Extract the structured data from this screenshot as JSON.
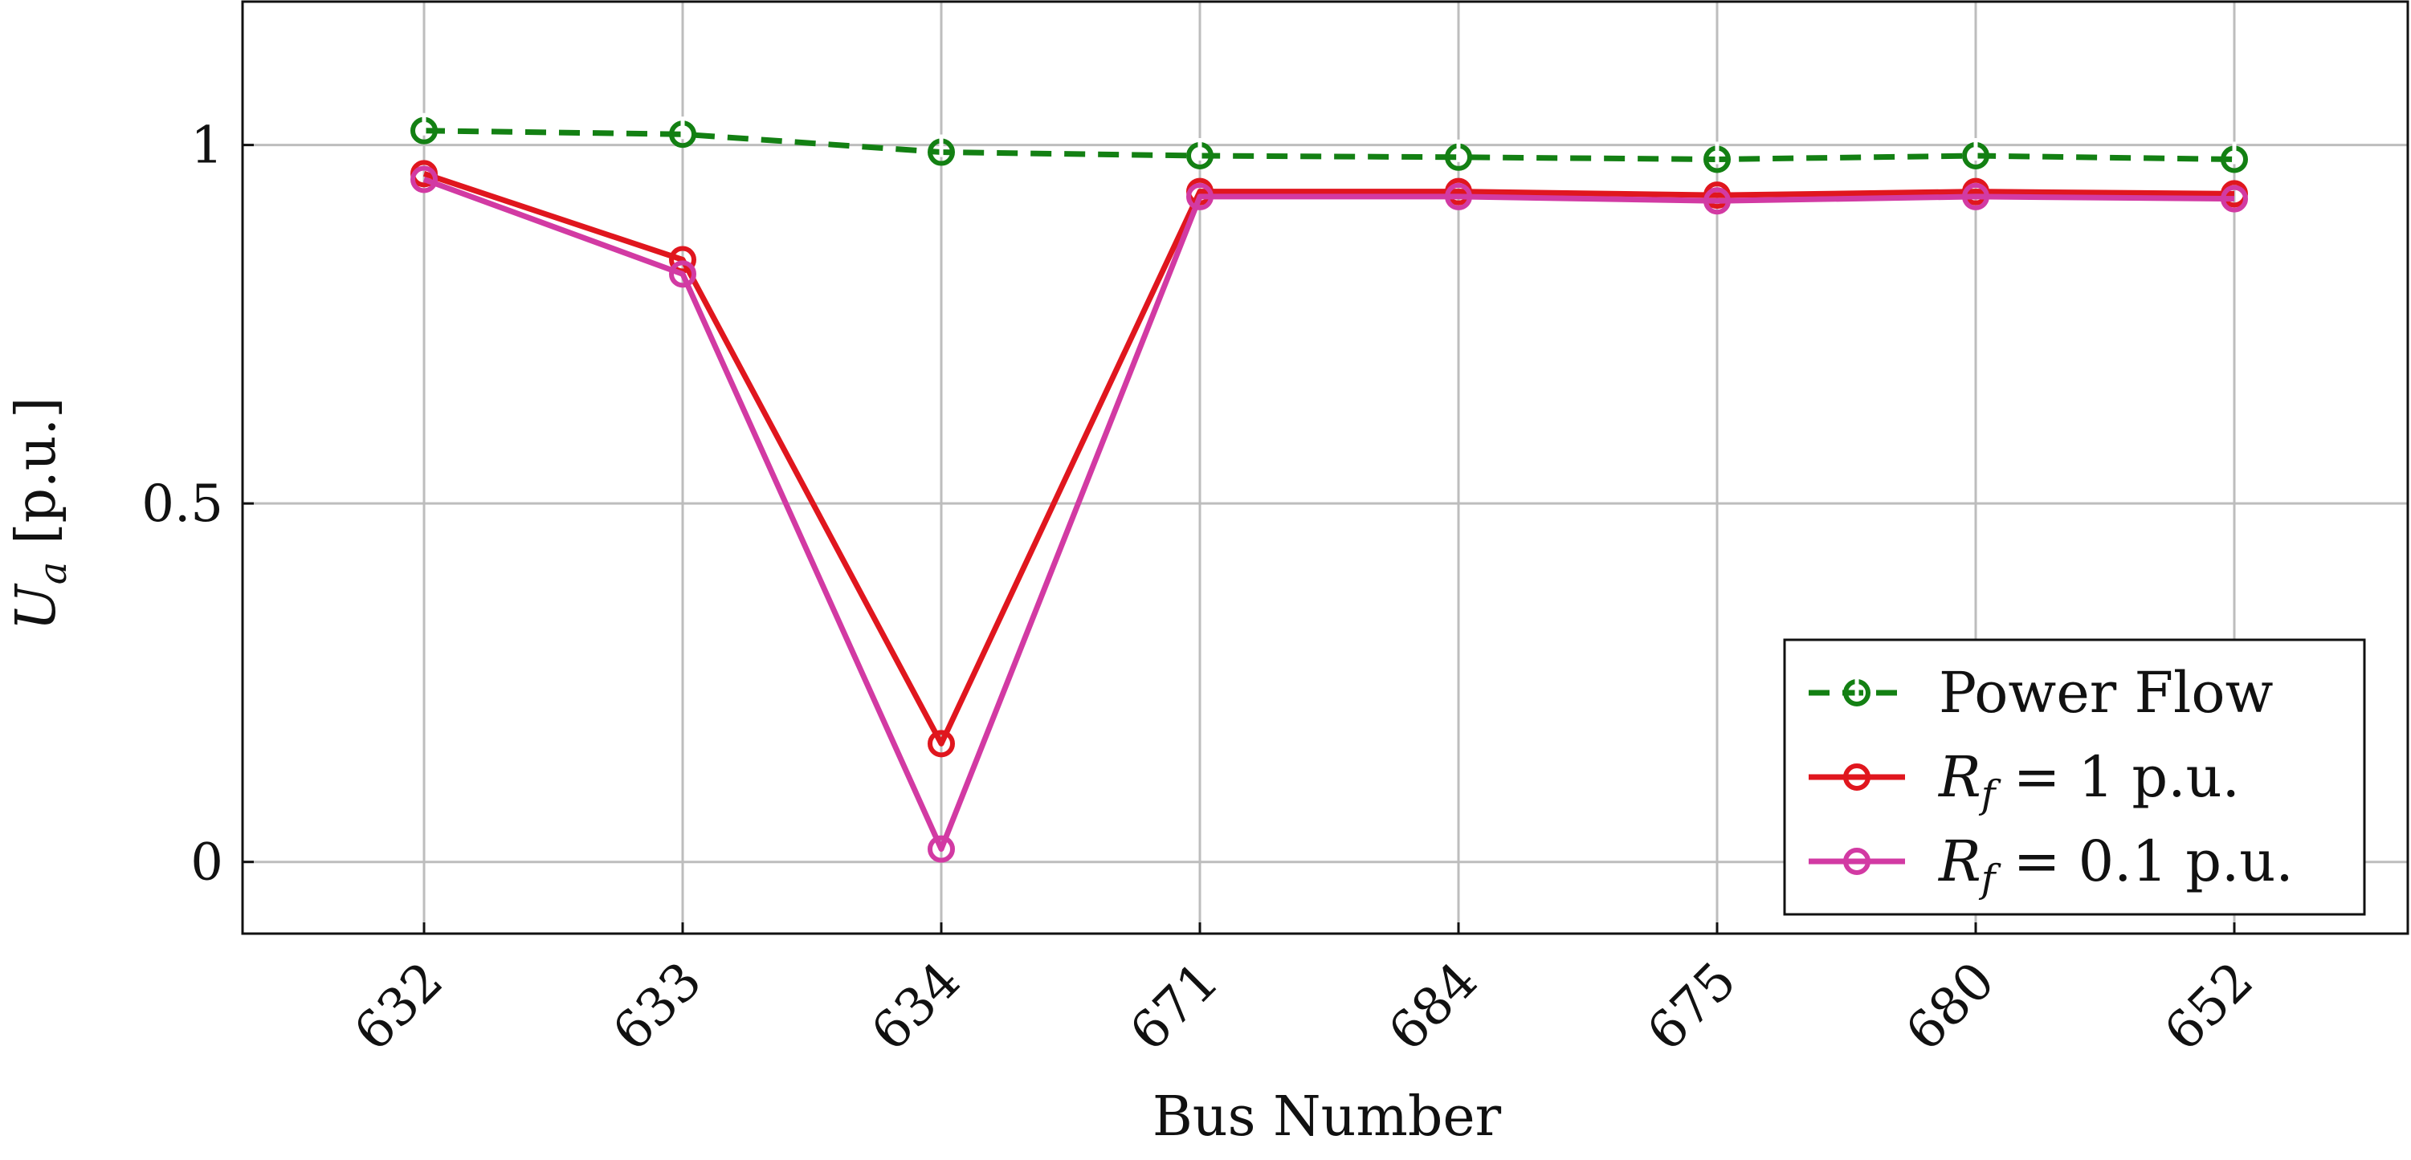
{
  "chart_data": {
    "type": "line",
    "title": "",
    "xlabel": "Bus Number",
    "ylabel": "U_a [p.u.]",
    "ylabel_main": "U",
    "ylabel_sub": "a",
    "ylabel_unit": " [p.u.]",
    "categories": [
      "632",
      "633",
      "634",
      "671",
      "684",
      "675",
      "680",
      "652"
    ],
    "yticks": [
      0,
      0.5,
      1
    ],
    "ytick_labels": [
      "0",
      "0.5",
      "1"
    ],
    "ylim": [
      -0.1,
      1.2
    ],
    "grid": true,
    "legend_position": "bottom-right",
    "series": [
      {
        "name": "Power Flow",
        "legend_main": "Power Flow",
        "legend_sub": "",
        "legend_rest": "",
        "color": "#138013",
        "line_style": "dashed",
        "marker": "open-circle-tick",
        "values": [
          1.02,
          1.015,
          0.99,
          0.985,
          0.983,
          0.98,
          0.985,
          0.98
        ]
      },
      {
        "name": "R_f = 1 p.u.",
        "legend_main": "R",
        "legend_sub": "f",
        "legend_rest": " = 1 p.u.",
        "color": "#e0161e",
        "line_style": "solid",
        "marker": "open-circle",
        "values": [
          0.96,
          0.84,
          0.165,
          0.935,
          0.935,
          0.93,
          0.935,
          0.932
        ]
      },
      {
        "name": "R_f = 0.1 p.u.",
        "legend_main": "R",
        "legend_sub": "f",
        "legend_rest": " = 0.1 p.u.",
        "color": "#d23aa3",
        "line_style": "solid",
        "marker": "open-circle",
        "values": [
          0.952,
          0.82,
          0.018,
          0.928,
          0.928,
          0.922,
          0.928,
          0.925
        ]
      }
    ]
  }
}
